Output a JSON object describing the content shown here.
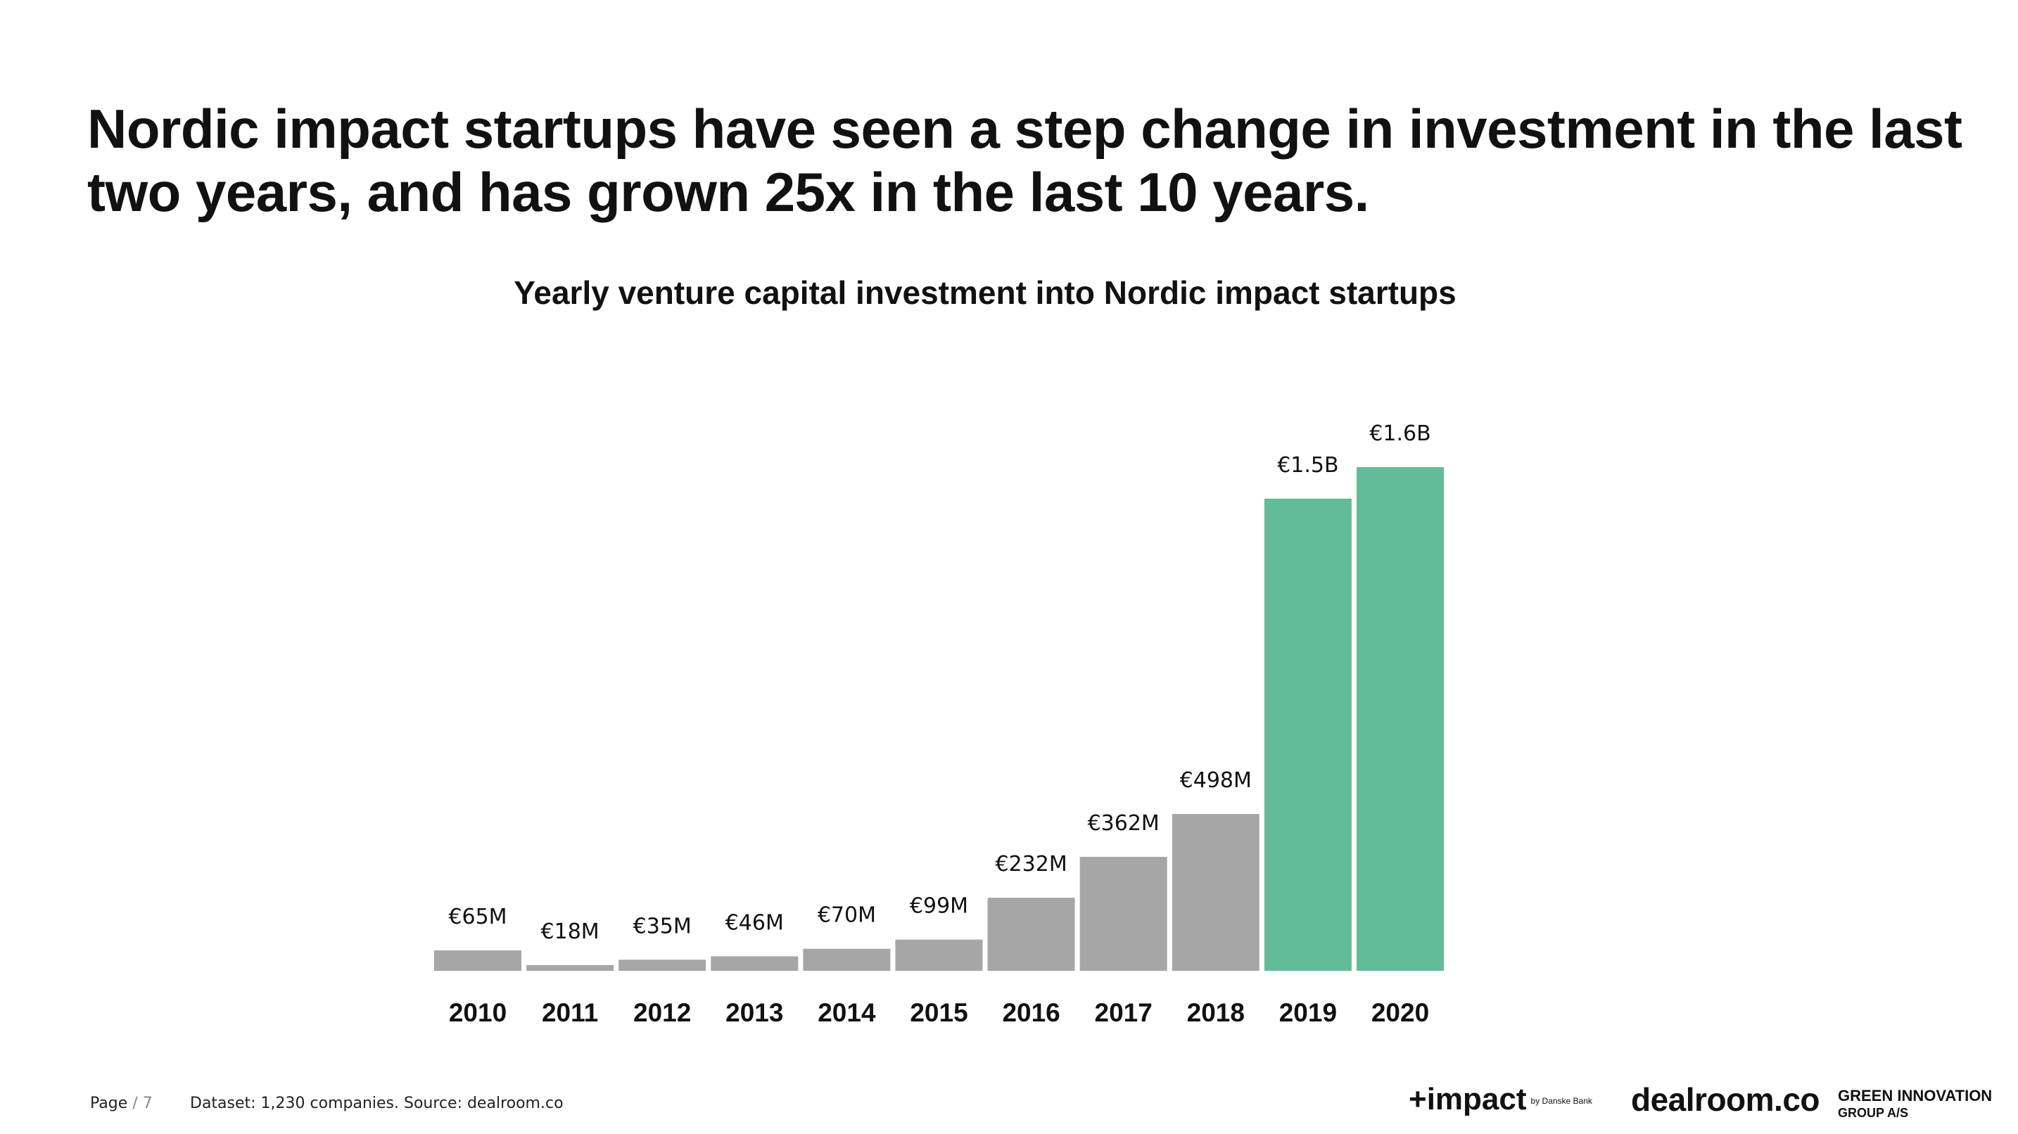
{
  "headline": "Nordic impact startups have seen a step change in investment in the last two years, and has grown 25x in the last 10 years.",
  "chart_data": {
    "type": "bar",
    "title": "Yearly venture capital investment into Nordic impact startups",
    "xlabel": "",
    "ylabel": "",
    "unit": "€M",
    "categories": [
      "2010",
      "2011",
      "2012",
      "2013",
      "2014",
      "2015",
      "2016",
      "2017",
      "2018",
      "2019",
      "2020"
    ],
    "values": [
      65,
      18,
      35,
      46,
      70,
      99,
      232,
      362,
      498,
      1500,
      1600
    ],
    "data_labels": [
      "€65M",
      "€18M",
      "€35M",
      "€46M",
      "€70M",
      "€99M",
      "€232M",
      "€362M",
      "€498M",
      "€1.5B",
      "€1.6B"
    ],
    "highlighted": [
      false,
      false,
      false,
      false,
      false,
      false,
      false,
      false,
      false,
      true,
      true
    ],
    "colors": {
      "default": "#a6a6a6",
      "highlight": "#63bc98"
    },
    "ylim": [
      0,
      1600
    ],
    "grid": false,
    "legend": "none"
  },
  "footer": {
    "page_label": "Page",
    "page_sep": "/",
    "page_number": "7",
    "source": "Dataset: 1,230 companies. Source: dealroom.co"
  },
  "logos": {
    "impact": "+impact",
    "impact_sub": "by Danske Bank",
    "dealroom": "dealroom.co",
    "green_line1": "GREEN INNOVATION",
    "green_line2": "GROUP A/S"
  }
}
